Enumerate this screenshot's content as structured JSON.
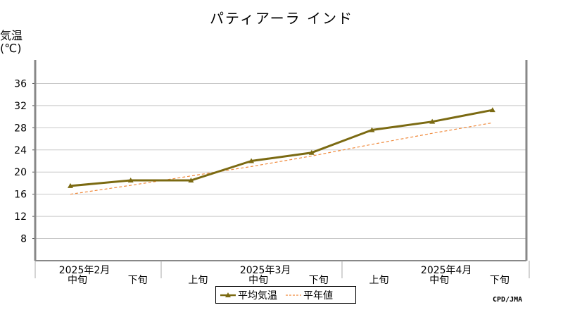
{
  "chart_data": {
    "type": "line",
    "title": "パティアーラ インド",
    "ylabel_line1": "気温",
    "ylabel_line2": "(℃)",
    "ylim": [
      4,
      40
    ],
    "yticks": [
      8,
      12,
      16,
      20,
      24,
      28,
      32,
      36
    ],
    "grid": true,
    "legend_position": "bottom",
    "categories": [
      "中旬",
      "下旬",
      "上旬",
      "中旬",
      "下旬",
      "上旬",
      "中旬",
      "下旬"
    ],
    "month_labels": [
      {
        "label": "2025年2月",
        "index": 0
      },
      {
        "label": "2025年3月",
        "index": 3
      },
      {
        "label": "2025年4月",
        "index": 6
      }
    ],
    "series": [
      {
        "name": "平均気温",
        "values": [
          17.5,
          18.5,
          18.5,
          22.0,
          23.5,
          27.6,
          29.1,
          31.2
        ],
        "color": "#7b6a12",
        "marker": "triangle"
      },
      {
        "name": "平年値",
        "values": [
          16.0,
          17.6,
          19.3,
          21.0,
          22.9,
          25.0,
          27.0,
          28.9
        ],
        "color": "#f08a3c",
        "dashed": true
      }
    ],
    "credit": "CPD/JMA"
  }
}
